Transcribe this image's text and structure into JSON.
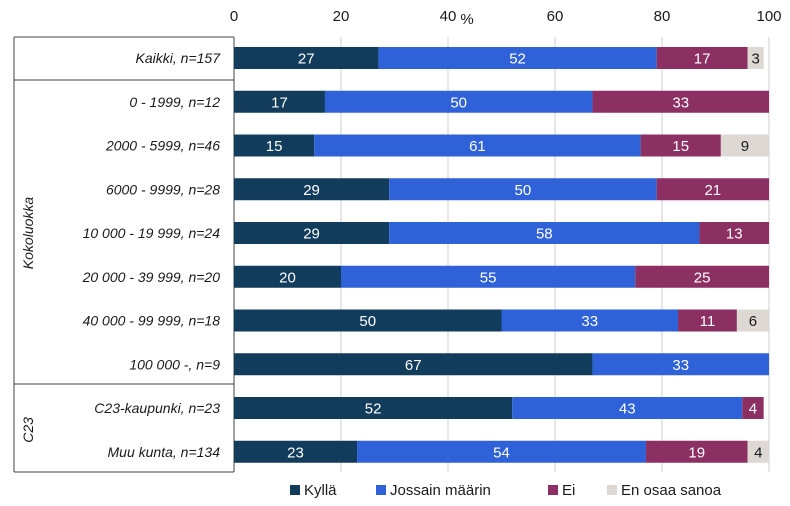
{
  "chart_data": {
    "type": "bar",
    "orientation": "horizontal",
    "stacked": true,
    "xlabel": "%",
    "xlim": [
      0,
      100
    ],
    "xticks": [
      "0",
      "20",
      "40",
      "60",
      "80",
      "100"
    ],
    "grid": true,
    "legend_position": "bottom",
    "categories": [
      "Kaikki, n=157",
      "0 - 1999, n=12",
      "2000 - 5999, n=46",
      "6000 - 9999, n=28",
      "10 000 - 19 999, n=24",
      "20 000 - 39 999, n=20",
      "40 000 - 99 999, n=18",
      "100 000 -, n=9",
      "C23-kaupunki, n=23",
      "Muu kunta, n=134"
    ],
    "groups": [
      {
        "label": "Kokoluokka",
        "from": 1,
        "to": 7
      },
      {
        "label": "C23",
        "from": 8,
        "to": 9
      }
    ],
    "series": [
      {
        "name": "Kyllä",
        "color": "#123c5c",
        "values": [
          27,
          17,
          15,
          29,
          29,
          20,
          50,
          67,
          52,
          23
        ]
      },
      {
        "name": "Jossain määrin",
        "color": "#2f62d8",
        "values": [
          52,
          50,
          61,
          50,
          58,
          55,
          33,
          33,
          43,
          54
        ]
      },
      {
        "name": "Ei",
        "color": "#8c2f62",
        "values": [
          17,
          33,
          15,
          21,
          13,
          25,
          11,
          0,
          4,
          19
        ]
      },
      {
        "name": "En osaa sanoa",
        "color": "#ddd8d3",
        "values": [
          3,
          0,
          9,
          0,
          0,
          0,
          6,
          0,
          0,
          4
        ]
      }
    ]
  }
}
